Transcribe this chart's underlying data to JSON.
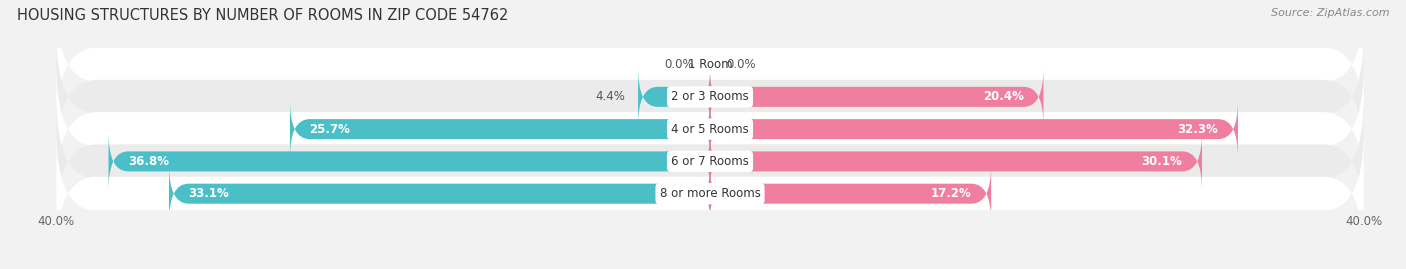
{
  "title": "HOUSING STRUCTURES BY NUMBER OF ROOMS IN ZIP CODE 54762",
  "source": "Source: ZipAtlas.com",
  "categories": [
    "1 Room",
    "2 or 3 Rooms",
    "4 or 5 Rooms",
    "6 or 7 Rooms",
    "8 or more Rooms"
  ],
  "owner_values": [
    0.0,
    4.4,
    25.7,
    36.8,
    33.1
  ],
  "renter_values": [
    0.0,
    20.4,
    32.3,
    30.1,
    17.2
  ],
  "owner_color": "#4BBFC8",
  "renter_color": "#F07EA0",
  "bg_color": "#F2F2F2",
  "axis_max": 40.0,
  "bar_height": 0.62,
  "title_fontsize": 10.5,
  "source_fontsize": 8,
  "label_fontsize": 8.5,
  "axis_label_fontsize": 8.5,
  "legend_fontsize": 8.5
}
